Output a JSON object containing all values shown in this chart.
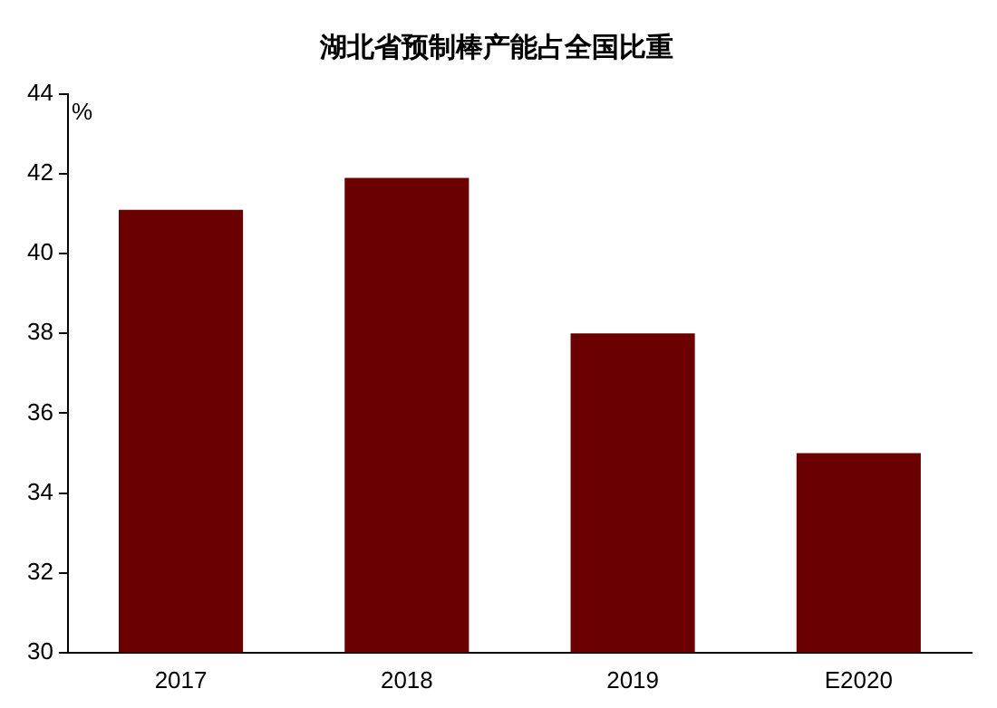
{
  "chart_data": {
    "type": "bar",
    "title": "湖北省预制棒产能占全国比重",
    "ylabel": "%",
    "categories": [
      "2017",
      "2018",
      "2019",
      "E2020"
    ],
    "values": [
      41.1,
      41.9,
      38.0,
      35.0
    ],
    "color": "#6b0000",
    "ylim": [
      30,
      44
    ],
    "yticks": [
      30,
      32,
      34,
      36,
      38,
      40,
      42,
      44
    ],
    "grid": false,
    "legend": false
  }
}
